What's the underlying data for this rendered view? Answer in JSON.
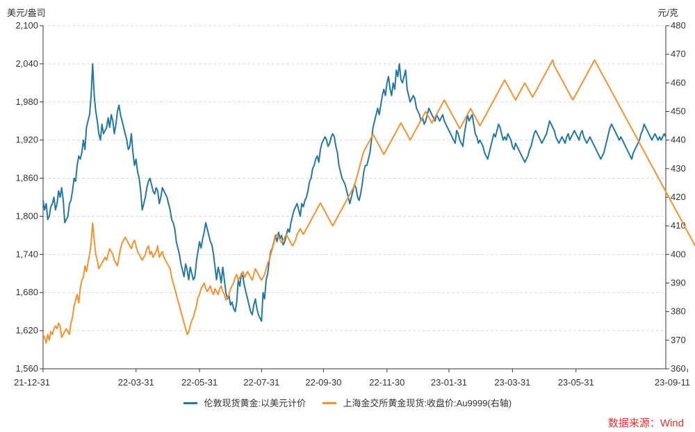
{
  "chart_data": {
    "type": "line",
    "left_unit": "美元/盎司",
    "right_unit": "元/克",
    "left_axis": {
      "ylim": [
        1560,
        2100
      ],
      "ticks": [
        "1,560",
        "1,620",
        "1,680",
        "1,740",
        "1,800",
        "1,860",
        "1,920",
        "1,980",
        "2,040",
        "2,100"
      ]
    },
    "right_axis": {
      "ylim": [
        360,
        480
      ],
      "ticks": [
        "360",
        "370",
        "380",
        "390",
        "400",
        "410",
        "420",
        "430",
        "440",
        "450",
        "460",
        "470",
        "480"
      ]
    },
    "x_labels": [
      "21-12-31",
      "22-03-31",
      "22-05-31",
      "22-07-31",
      "22-09-30",
      "22-11-30",
      "23-01-31",
      "23-03-31",
      "23-05-31",
      "23-09-11"
    ],
    "x_label_index": [
      0,
      60,
      101,
      141,
      181,
      222,
      262,
      303,
      344,
      416
    ],
    "series": [
      {
        "name": "伦敦现货黄金:以美元计价",
        "axis": "left",
        "color": "#2377a4",
        "values": [
          1825,
          1810,
          1820,
          1795,
          1800,
          1815,
          1820,
          1830,
          1810,
          1820,
          1840,
          1830,
          1845,
          1825,
          1790,
          1795,
          1800,
          1820,
          1825,
          1840,
          1860,
          1855,
          1880,
          1895,
          1890,
          1900,
          1920,
          1905,
          1940,
          1950,
          1960,
          1990,
          2040,
          1990,
          1965,
          1950,
          1930,
          1920,
          1945,
          1930,
          1935,
          1940,
          1955,
          1940,
          1960,
          1950,
          1930,
          1945,
          1965,
          1975,
          1960,
          1950,
          1940,
          1930,
          1920,
          1905,
          1910,
          1930,
          1900,
          1880,
          1890,
          1870,
          1860,
          1840,
          1810,
          1820,
          1830,
          1845,
          1855,
          1860,
          1850,
          1840,
          1835,
          1845,
          1840,
          1820,
          1830,
          1845,
          1840,
          1835,
          1830,
          1820,
          1810,
          1795,
          1790,
          1780,
          1760,
          1750,
          1740,
          1725,
          1715,
          1705,
          1725,
          1715,
          1700,
          1720,
          1710,
          1700,
          1705,
          1730,
          1745,
          1760,
          1750,
          1765,
          1775,
          1790,
          1780,
          1770,
          1760,
          1755,
          1740,
          1720,
          1700,
          1720,
          1710,
          1695,
          1720,
          1700,
          1680,
          1670,
          1675,
          1660,
          1665,
          1655,
          1650,
          1665,
          1700,
          1690,
          1710,
          1705,
          1690,
          1680,
          1670,
          1660,
          1650,
          1645,
          1660,
          1670,
          1655,
          1645,
          1640,
          1635,
          1680,
          1670,
          1700,
          1710,
          1730,
          1745,
          1750,
          1760,
          1770,
          1760,
          1775,
          1765,
          1770,
          1755,
          1760,
          1770,
          1780,
          1775,
          1790,
          1800,
          1810,
          1815,
          1820,
          1810,
          1800,
          1820,
          1815,
          1825,
          1830,
          1840,
          1855,
          1860,
          1875,
          1880,
          1890,
          1895,
          1885,
          1905,
          1915,
          1920,
          1925,
          1920,
          1910,
          1915,
          1925,
          1930,
          1925,
          1910,
          1900,
          1880,
          1870,
          1860,
          1855,
          1850,
          1840,
          1830,
          1820,
          1830,
          1840,
          1850,
          1845,
          1830,
          1825,
          1835,
          1850,
          1870,
          1880,
          1880,
          1890,
          1900,
          1920,
          1940,
          1950,
          1960,
          1970,
          1960,
          1975,
          1990,
          2000,
          1990,
          2010,
          2020,
          2000,
          1990,
          2010,
          2000,
          2030,
          2020,
          2040,
          2015,
          2010,
          2020,
          2030,
          2000,
          1990,
          1980,
          1985,
          1990,
          1985,
          1970,
          1965,
          1960,
          1950,
          1955,
          1945,
          1950,
          1960,
          1970,
          1965,
          1960,
          1955,
          1950,
          1960,
          1955,
          1950,
          1955,
          1960,
          1950,
          1945,
          1940,
          1935,
          1930,
          1925,
          1920,
          1915,
          1935,
          1930,
          1920,
          1915,
          1910,
          1930,
          1945,
          1960,
          1950,
          1955,
          1960,
          1945,
          1930,
          1925,
          1915,
          1920,
          1915,
          1910,
          1900,
          1895,
          1890,
          1900,
          1910,
          1920,
          1930,
          1925,
          1935,
          1945,
          1940,
          1930,
          1920,
          1925,
          1920,
          1930,
          1925,
          1920,
          1910,
          1905,
          1915,
          1910,
          1905,
          1900,
          1895,
          1890,
          1885,
          1890,
          1895,
          1905,
          1910,
          1920,
          1930,
          1935,
          1930,
          1925,
          1920,
          1915,
          1920,
          1925,
          1930,
          1940,
          1950,
          1945,
          1940,
          1935,
          1925,
          1920,
          1915,
          1920,
          1925,
          1920,
          1915,
          1925,
          1930,
          1920,
          1925,
          1930,
          1935,
          1930,
          1925,
          1920,
          1930,
          1935,
          1925,
          1920,
          1915,
          1920,
          1925,
          1920,
          1915,
          1910,
          1905,
          1900,
          1895,
          1890,
          1895,
          1900,
          1910,
          1920,
          1930,
          1940,
          1945,
          1940,
          1935,
          1930,
          1925,
          1920,
          1925,
          1920,
          1915,
          1910,
          1905,
          1900,
          1895,
          1890,
          1900,
          1905,
          1910,
          1915,
          1920,
          1930,
          1935,
          1945,
          1940,
          1935,
          1930,
          1925,
          1920,
          1925,
          1930,
          1925,
          1920,
          1925,
          1920,
          1925,
          1930,
          1925
        ]
      },
      {
        "name": "上海金交所黄金现货:收盘价:Au9999(右轴)",
        "axis": "right",
        "color": "#f5922f",
        "values": [
          372,
          371,
          369,
          372,
          370,
          373,
          372,
          374,
          375,
          374,
          376,
          375,
          371,
          372,
          373,
          374,
          373,
          372,
          376,
          378,
          382,
          384,
          386,
          383,
          388,
          391,
          392,
          396,
          394,
          397,
          400,
          404,
          411,
          405,
          400,
          398,
          395,
          396,
          397,
          398,
          399,
          398,
          400,
          402,
          401,
          400,
          398,
          397,
          396,
          399,
          402,
          404,
          405,
          406,
          405,
          404,
          403,
          402,
          404,
          405,
          403,
          401,
          400,
          399,
          398,
          399,
          400,
          402,
          403,
          400,
          401,
          399,
          400,
          401,
          403,
          399,
          400,
          401,
          399,
          398,
          397,
          396,
          395,
          392,
          390,
          388,
          386,
          384,
          382,
          380,
          378,
          376,
          374,
          372,
          373,
          375,
          377,
          378,
          380,
          382,
          385,
          386,
          388,
          389,
          390,
          388,
          387,
          388,
          389,
          387,
          386,
          388,
          387,
          386,
          388,
          389,
          387,
          386,
          384,
          385,
          386,
          388,
          389,
          390,
          392,
          393,
          391,
          392,
          393,
          394,
          392,
          393,
          394,
          393,
          392,
          391,
          393,
          395,
          394,
          393,
          392,
          391,
          392,
          393,
          395,
          397,
          398,
          400,
          402,
          404,
          406,
          407,
          406,
          405,
          404,
          405,
          406,
          407,
          406,
          405,
          404,
          403,
          404,
          405,
          407,
          408,
          409,
          408,
          407,
          408,
          409,
          410,
          411,
          412,
          413,
          414,
          415,
          416,
          417,
          418,
          417,
          416,
          415,
          414,
          413,
          412,
          411,
          410,
          411,
          412,
          413,
          414,
          415,
          416,
          417,
          418,
          419,
          420,
          421,
          422,
          423,
          424,
          426,
          428,
          430,
          432,
          434,
          436,
          437,
          438,
          439,
          440,
          441,
          442,
          441,
          440,
          439,
          438,
          437,
          436,
          435,
          436,
          437,
          438,
          439,
          440,
          441,
          442,
          443,
          444,
          445,
          446,
          445,
          444,
          443,
          442,
          441,
          440,
          441,
          442,
          443,
          444,
          445,
          446,
          447,
          448,
          449,
          450,
          449,
          448,
          447,
          446,
          447,
          448,
          449,
          450,
          451,
          452,
          453,
          454,
          453,
          452,
          451,
          450,
          449,
          448,
          447,
          446,
          445,
          444,
          445,
          446,
          447,
          448,
          449,
          450,
          451,
          450,
          449,
          448,
          447,
          446,
          445,
          446,
          447,
          448,
          449,
          450,
          451,
          452,
          453,
          454,
          455,
          456,
          457,
          458,
          459,
          460,
          461,
          460,
          459,
          458,
          457,
          456,
          455,
          454,
          455,
          456,
          457,
          458,
          459,
          460,
          459,
          458,
          457,
          456,
          455,
          456,
          457,
          458,
          459,
          460,
          461,
          462,
          463,
          464,
          465,
          466,
          467,
          468,
          466,
          465,
          464,
          463,
          462,
          461,
          460,
          459,
          458,
          457,
          456,
          455,
          454,
          455,
          456,
          457,
          458,
          459,
          460,
          461,
          462,
          463,
          464,
          465,
          466,
          467,
          468,
          467,
          466,
          465,
          464,
          463,
          462,
          461,
          460,
          459,
          458,
          457,
          456,
          455,
          454,
          453,
          452,
          451,
          450,
          449,
          448,
          447,
          446,
          445,
          444,
          443,
          442,
          441,
          440,
          439,
          438,
          437,
          436,
          435,
          434,
          433,
          432,
          431,
          430,
          429,
          428,
          427,
          426,
          425,
          424,
          423,
          422,
          421,
          420,
          419,
          418,
          417,
          416,
          415,
          414,
          413,
          412,
          411,
          410,
          409,
          408,
          407,
          406,
          405,
          404,
          403,
          402,
          401,
          400,
          399,
          398
        ]
      }
    ]
  },
  "source_note": "数据来源：Wind"
}
